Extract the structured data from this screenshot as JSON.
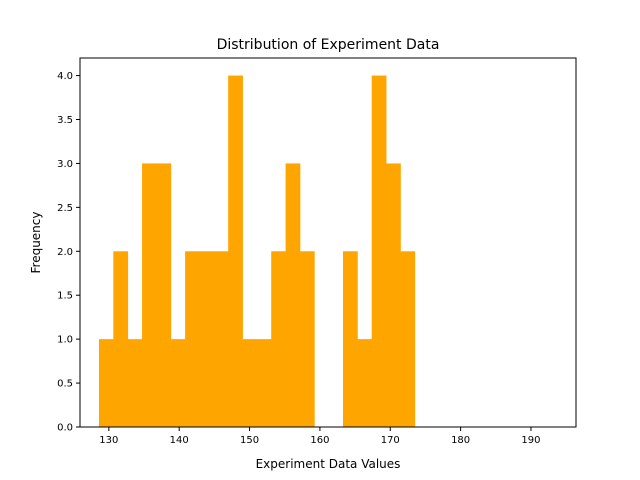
{
  "chart_data": {
    "type": "bar",
    "title": "Distribution of Experiment Data",
    "xlabel": "Experiment Data Values",
    "ylabel": "Frequency",
    "bar_color": "#ffa500",
    "xlim": [
      125.9,
      196.4
    ],
    "ylim": [
      0,
      4.2
    ],
    "bin_start": 128.6,
    "bin_width": 2.04,
    "counts": [
      1,
      2,
      1,
      3,
      3,
      1,
      2,
      2,
      2,
      4,
      1,
      1,
      2,
      3,
      2,
      0,
      0,
      2,
      1,
      4,
      3,
      2
    ],
    "x_ticks": [
      130,
      140,
      150,
      160,
      170,
      180,
      190
    ],
    "x_tick_labels": [
      "130",
      "140",
      "150",
      "160",
      "170",
      "180",
      "190"
    ],
    "y_ticks": [
      0,
      0.5,
      1,
      1.5,
      2,
      2.5,
      3,
      3.5,
      4
    ],
    "y_tick_labels": [
      "0.0",
      "0.5",
      "1.0",
      "1.5",
      "2.0",
      "2.5",
      "3.0",
      "3.5",
      "4.0"
    ],
    "grid": false,
    "legend": "none"
  }
}
